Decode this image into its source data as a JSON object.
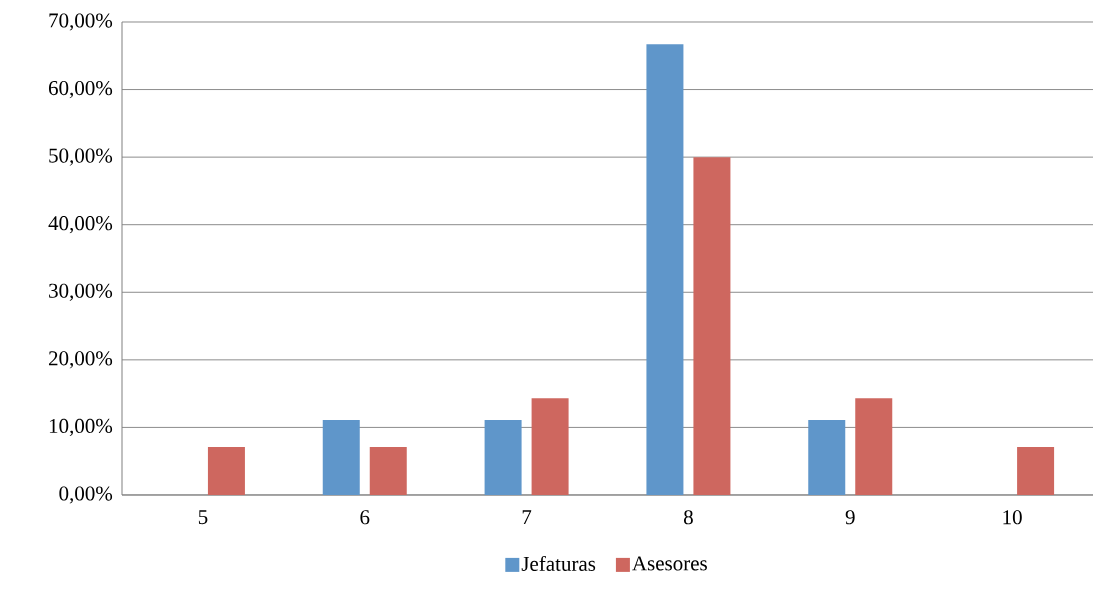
{
  "chart_data": {
    "type": "bar",
    "categories": [
      "5",
      "6",
      "7",
      "8",
      "9",
      "10"
    ],
    "series": [
      {
        "name": "Jefaturas",
        "color": "#5f96ca",
        "values": [
          0,
          11.1,
          11.1,
          66.7,
          11.1,
          0
        ]
      },
      {
        "name": "Asesores",
        "color": "#ce675f",
        "values": [
          7.1,
          7.1,
          14.3,
          50,
          14.3,
          7.1
        ]
      }
    ],
    "ylim": [
      0,
      70
    ],
    "yticks": [
      {
        "value": 0,
        "label": "0,00%"
      },
      {
        "value": 10,
        "label": "10,00%"
      },
      {
        "value": 20,
        "label": "20,00%"
      },
      {
        "value": 30,
        "label": "30,00%"
      },
      {
        "value": 40,
        "label": "40,00%"
      },
      {
        "value": 50,
        "label": "50,00%"
      },
      {
        "value": 60,
        "label": "60,00%"
      },
      {
        "value": 70,
        "label": "70,00%"
      }
    ],
    "grid": "y",
    "legend": "bottom"
  }
}
